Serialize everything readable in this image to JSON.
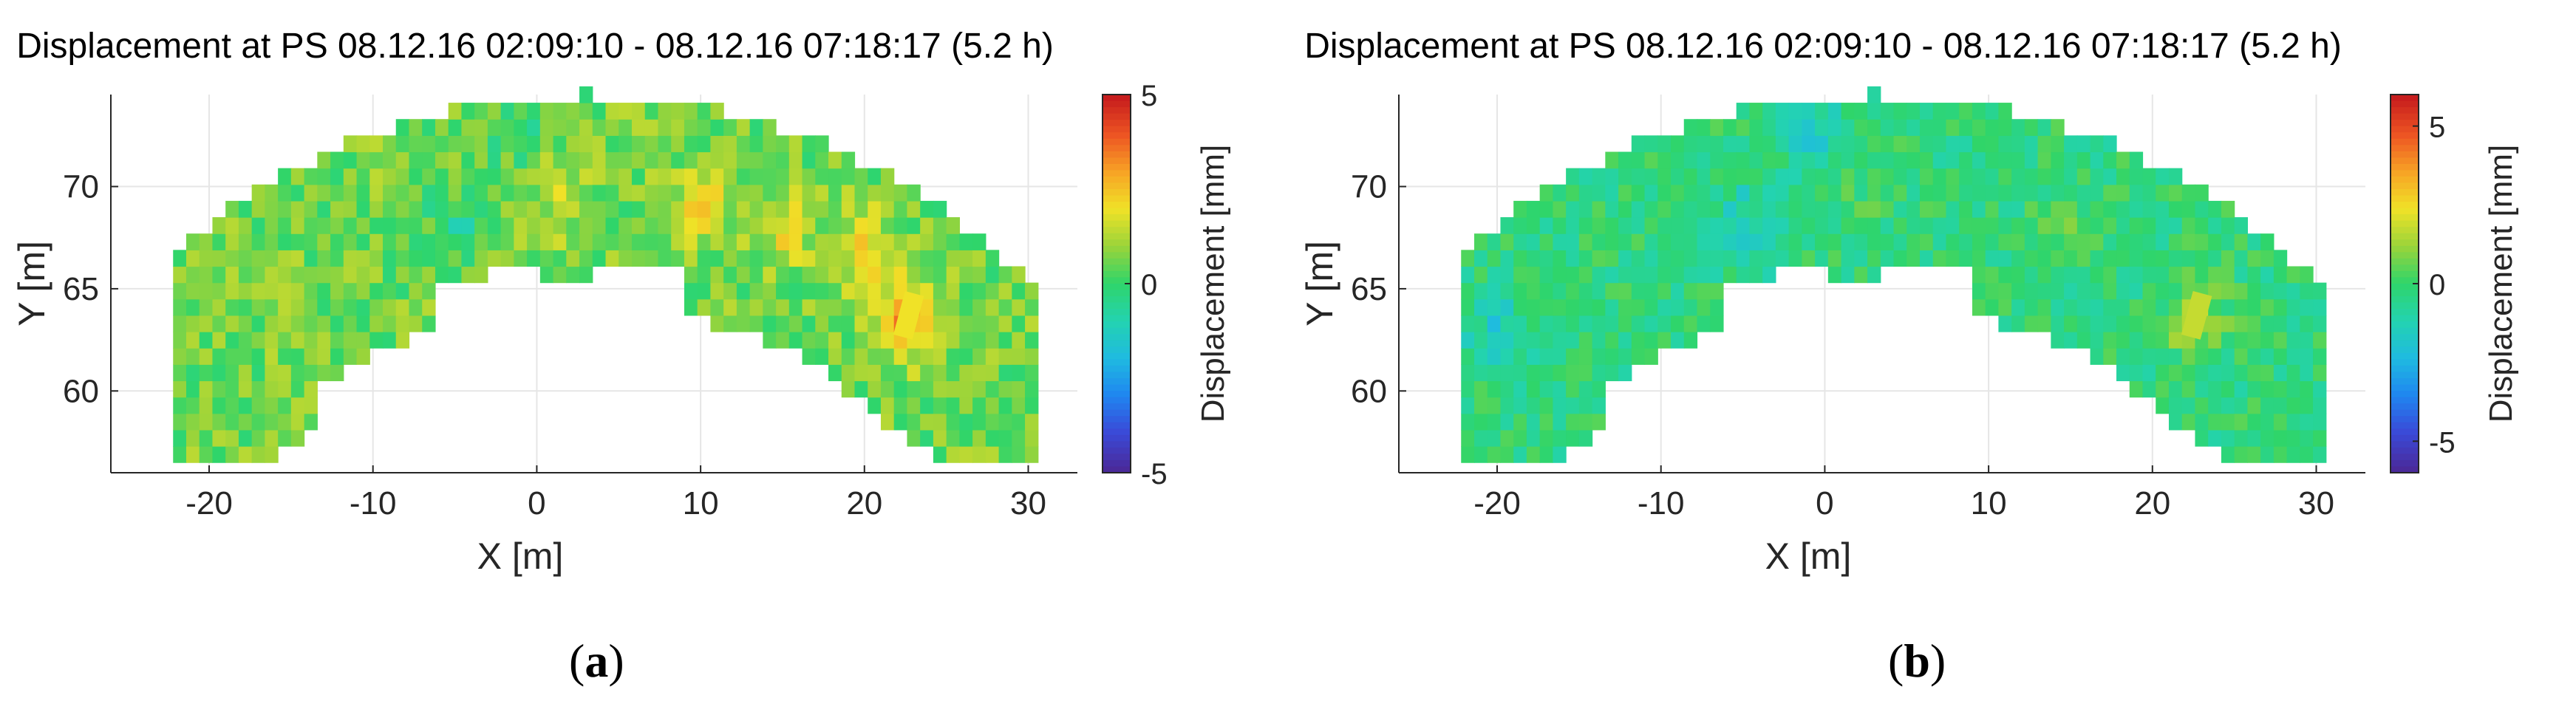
{
  "chart_data": [
    {
      "type": "heatmap",
      "panel_label": "a",
      "title": "Displacement at PS 08.12.16 02:09:10 - 08.12.16 07:18:17 (5.2 h)",
      "xlabel": "X [m]",
      "ylabel": "Y [m]",
      "colorbar_label": "Displacement [mm]",
      "xlim": [
        -26,
        33
      ],
      "ylim": [
        56,
        74.5
      ],
      "x_ticks": [
        -20,
        -10,
        0,
        10,
        20,
        30
      ],
      "y_ticks": [
        60,
        65,
        70
      ],
      "clim": [
        -5,
        5
      ],
      "colorbar_ticks": [
        -5,
        0,
        5
      ],
      "grid": true,
      "bias_mm": 0.6,
      "hotspots": [
        {
          "x": 10,
          "y": 69,
          "value": 1.4
        },
        {
          "x": 15,
          "y": 68,
          "value": 1.2
        },
        {
          "x": 20,
          "y": 67,
          "value": 1.6
        },
        {
          "x": 22.6,
          "y": 63.5,
          "value": 2.6
        },
        {
          "x": 1.5,
          "y": 69.5,
          "value": 1.0
        },
        {
          "x": -5,
          "y": 68,
          "value": -1.2
        },
        {
          "x": -1,
          "y": 73,
          "value": -0.9
        }
      ]
    },
    {
      "type": "heatmap",
      "panel_label": "b",
      "title": "Displacement at PS 08.12.16 02:09:10 - 08.12.16 07:18:17 (5.2 h)",
      "xlabel": "X [m]",
      "ylabel": "Y [m]",
      "colorbar_label": "Displacement [mm]",
      "xlim": [
        -26,
        33
      ],
      "ylim": [
        56,
        74.5
      ],
      "x_ticks": [
        -20,
        -10,
        0,
        10,
        20,
        30
      ],
      "y_ticks": [
        60,
        65,
        70
      ],
      "clim": [
        -6,
        6
      ],
      "colorbar_ticks": [
        -5,
        0,
        5
      ],
      "grid": true,
      "bias_mm": -0.3,
      "hotspots": [
        {
          "x": 22.6,
          "y": 63.5,
          "value": 1.8
        },
        {
          "x": 15,
          "y": 68,
          "value": 0.7
        },
        {
          "x": -1,
          "y": 73,
          "value": -1.4
        },
        {
          "x": -5,
          "y": 68,
          "value": -1.5
        },
        {
          "x": -20,
          "y": 63,
          "value": -1.3
        },
        {
          "x": 2,
          "y": 69,
          "value": 0.5
        }
      ]
    }
  ],
  "colors": {
    "parula": [
      "#3e26a8",
      "#4743f7",
      "#2c73fd",
      "#12a0e3",
      "#0cb7c2",
      "#2fc69a",
      "#7fcb60",
      "#c6c13c",
      "#f6ba34",
      "#fbd42b",
      "#f9fb0e"
    ],
    "jet_like": [
      "#4a2a9a",
      "#3a4ad8",
      "#1f86f0",
      "#1fbbe0",
      "#23d3b0",
      "#2fd56a",
      "#9ad43a",
      "#f0e227",
      "#f7a325",
      "#ed5423",
      "#c71d1d"
    ]
  }
}
